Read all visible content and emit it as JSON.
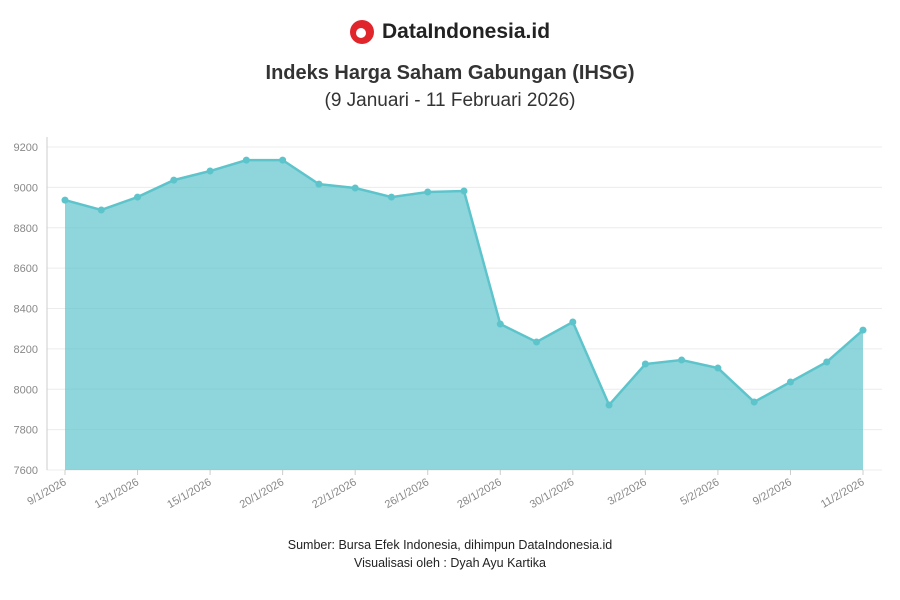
{
  "brand": "DataIndonesia.id",
  "title": "Indeks Harga Saham Gabungan (IHSG)",
  "subtitle": "(9 Januari - 11 Februari 2026)",
  "source": "Sumber: Bursa Efek Indonesia, dihimpun DataIndonesia.id",
  "credit": "Visualisasi oleh : Dyah Ayu Kartika",
  "chart_data": {
    "type": "area",
    "title": "Indeks Harga Saham Gabungan (IHSG)",
    "xlabel": "",
    "ylabel": "",
    "ylim": [
      7600,
      9200
    ],
    "yticks": [
      7600,
      7800,
      8000,
      8200,
      8400,
      8600,
      8800,
      9000,
      9200
    ],
    "grid": true,
    "color": "#5ec4cc",
    "x": [
      "9/1/2026",
      "12/1/2026",
      "13/1/2026",
      "14/1/2026",
      "15/1/2026",
      "19/1/2026",
      "20/1/2026",
      "21/1/2026",
      "22/1/2026",
      "23/1/2026",
      "26/1/2026",
      "27/1/2026",
      "28/1/2026",
      "29/1/2026",
      "30/1/2026",
      "2/2/2026",
      "3/2/2026",
      "4/2/2026",
      "5/2/2026",
      "6/2/2026",
      "9/2/2026",
      "10/2/2026",
      "11/2/2026"
    ],
    "xtick_labels": [
      "9/1/2026",
      "13/1/2026",
      "15/1/2026",
      "20/1/2026",
      "22/1/2026",
      "26/1/2026",
      "28/1/2026",
      "30/1/2026",
      "3/2/2026",
      "5/2/2026",
      "9/2/2026",
      "11/2/2026"
    ],
    "values": [
      8937,
      8888,
      8952,
      9036,
      9081,
      9135,
      9135,
      9016,
      8997,
      8952,
      8977,
      8982,
      8323,
      8234,
      8333,
      7922,
      8125,
      8145,
      8105,
      7937,
      8036,
      8135,
      8293
    ]
  }
}
